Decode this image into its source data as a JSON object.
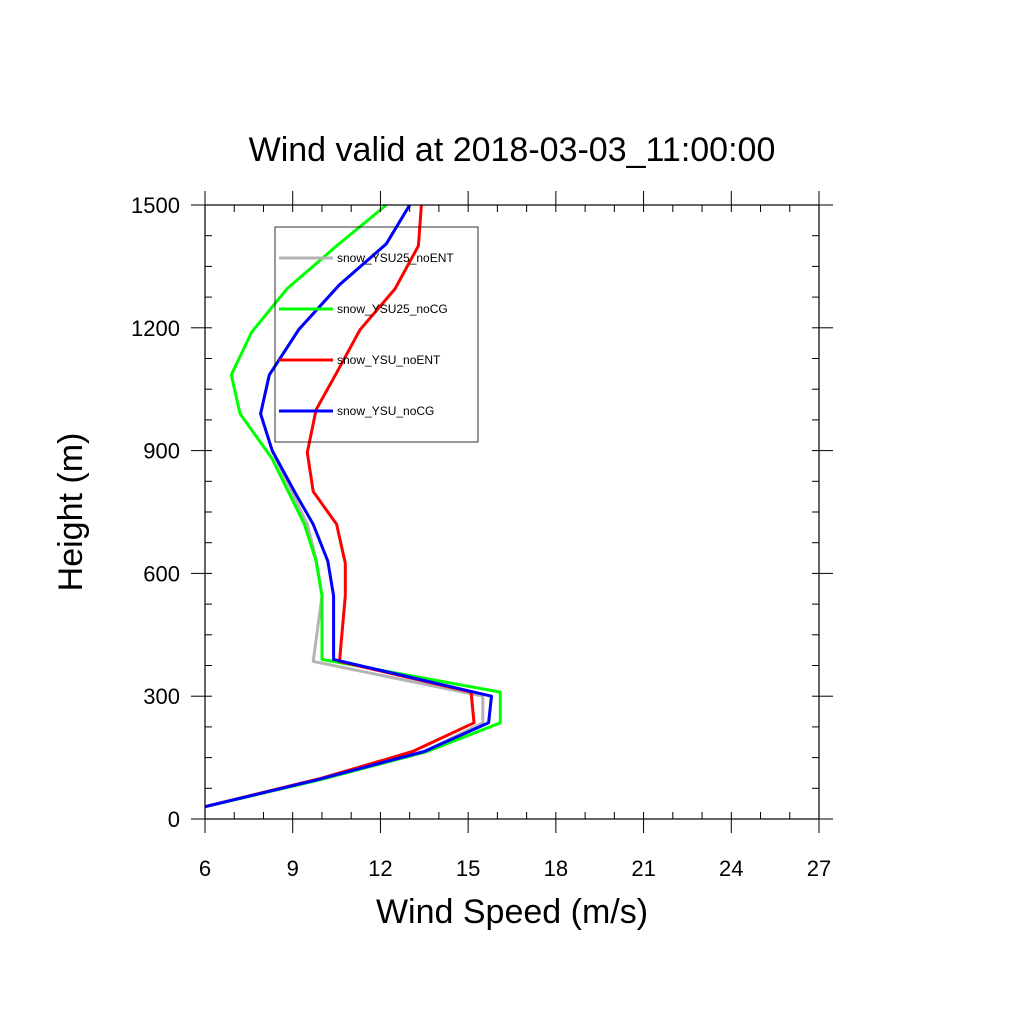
{
  "chart_data": {
    "type": "line",
    "title": "Wind valid at 2018-03-03_11:00:00",
    "xlabel": "Wind Speed (m/s)",
    "ylabel": "Height (m)",
    "xlim": [
      6,
      27
    ],
    "ylim": [
      0,
      1500
    ],
    "xticks": [
      6,
      9,
      12,
      15,
      18,
      21,
      24,
      27
    ],
    "yticks": [
      0,
      300,
      600,
      900,
      1200,
      1500
    ],
    "legend_position": "top-left",
    "grid": false,
    "series": [
      {
        "name": "snow_YSU25_noENT",
        "color": "#b4b4b4",
        "points": [
          [
            6.0,
            30
          ],
          [
            9.8,
            95
          ],
          [
            13.5,
            165
          ],
          [
            15.5,
            235
          ],
          [
            15.5,
            300
          ],
          [
            9.7,
            385
          ],
          [
            10.0,
            545
          ],
          [
            9.8,
            635
          ],
          [
            9.5,
            720
          ],
          [
            9.0,
            795
          ],
          [
            8.3,
            900
          ],
          [
            7.9,
            990
          ],
          [
            8.2,
            1085
          ],
          [
            9.2,
            1195
          ],
          [
            10.6,
            1305
          ],
          [
            12.2,
            1405
          ],
          [
            13.0,
            1500
          ]
        ]
      },
      {
        "name": "snow_YSU25_noCG",
        "color": "#00ff00",
        "points": [
          [
            6.0,
            30
          ],
          [
            9.9,
            95
          ],
          [
            13.6,
            165
          ],
          [
            16.1,
            235
          ],
          [
            16.1,
            310
          ],
          [
            10.0,
            390
          ],
          [
            10.0,
            545
          ],
          [
            9.8,
            630
          ],
          [
            9.4,
            720
          ],
          [
            8.3,
            880
          ],
          [
            7.2,
            990
          ],
          [
            6.9,
            1085
          ],
          [
            7.6,
            1190
          ],
          [
            8.8,
            1295
          ],
          [
            10.5,
            1400
          ],
          [
            12.2,
            1500
          ]
        ]
      },
      {
        "name": "snow_YSU_noENT",
        "color": "#ff0000",
        "points": [
          [
            6.0,
            30
          ],
          [
            10.0,
            100
          ],
          [
            13.1,
            165
          ],
          [
            15.2,
            235
          ],
          [
            15.1,
            310
          ],
          [
            10.6,
            385
          ],
          [
            10.8,
            545
          ],
          [
            10.8,
            625
          ],
          [
            10.5,
            720
          ],
          [
            9.7,
            800
          ],
          [
            9.5,
            895
          ],
          [
            9.8,
            1000
          ],
          [
            10.5,
            1090
          ],
          [
            11.3,
            1195
          ],
          [
            12.5,
            1295
          ],
          [
            13.3,
            1400
          ],
          [
            13.4,
            1500
          ]
        ]
      },
      {
        "name": "snow_YSU_noCG",
        "color": "#0000ff",
        "points": [
          [
            6.0,
            30
          ],
          [
            9.8,
            95
          ],
          [
            13.5,
            165
          ],
          [
            15.7,
            235
          ],
          [
            15.8,
            300
          ],
          [
            10.4,
            390
          ],
          [
            10.4,
            545
          ],
          [
            10.2,
            630
          ],
          [
            9.7,
            720
          ],
          [
            9.1,
            795
          ],
          [
            8.3,
            900
          ],
          [
            7.9,
            990
          ],
          [
            8.2,
            1085
          ],
          [
            9.2,
            1195
          ],
          [
            10.6,
            1305
          ],
          [
            12.2,
            1405
          ],
          [
            13.0,
            1500
          ]
        ]
      }
    ]
  }
}
